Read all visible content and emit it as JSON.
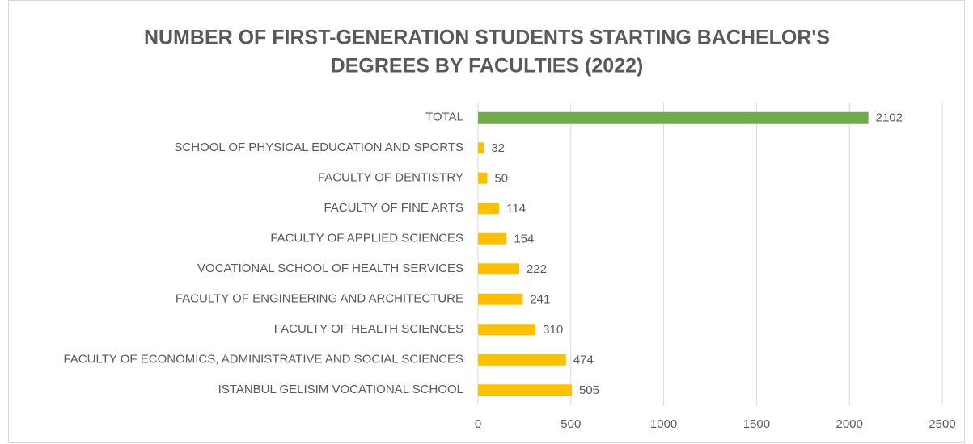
{
  "chart_data": {
    "type": "hbar",
    "title": [
      "NUMBER OF FIRST-GENERATION STUDENTS STARTING BACHELOR'S",
      "DEGREES BY FACULTIES (2022)"
    ],
    "categories": [
      "TOTAL",
      "SCHOOL OF PHYSICAL EDUCATION AND SPORTS",
      "FACULTY OF DENTISTRY",
      "FACULTY OF FINE ARTS",
      "FACULTY OF APPLIED SCIENCES",
      "VOCATIONAL SCHOOL OF HEALTH SERVICES",
      "FACULTY OF ENGINEERING AND ARCHITECTURE",
      "FACULTY OF HEALTH SCIENCES",
      "FACULTY OF ECONOMICS, ADMINISTRATIVE AND SOCIAL SCIENCES",
      "ISTANBUL GELISIM VOCATIONAL SCHOOL"
    ],
    "values": [
      2102,
      32,
      50,
      114,
      154,
      222,
      241,
      310,
      474,
      505
    ],
    "colors": [
      "#70ad47",
      "#ffc000",
      "#ffc000",
      "#ffc000",
      "#ffc000",
      "#ffc000",
      "#ffc000",
      "#ffc000",
      "#ffc000",
      "#ffc000"
    ],
    "xlim": [
      0,
      2500
    ],
    "xticks": [
      0,
      500,
      1000,
      1500,
      2000,
      2500
    ],
    "grid": true
  }
}
